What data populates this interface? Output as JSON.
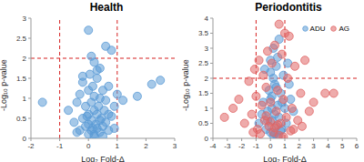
{
  "chart_data": [
    {
      "type": "scatter",
      "title": "Health",
      "x_label": "Log₂ Fold-Δ",
      "y_label": "-Log₁₀ p-value",
      "xlim": [
        -2,
        3
      ],
      "xticks": [
        -2,
        -1,
        0,
        1,
        2,
        3
      ],
      "ylim": [
        0,
        3
      ],
      "yticks": [
        0,
        0.5,
        1,
        1.5,
        2,
        2.5,
        3
      ],
      "thresholds": {
        "x": [
          -1,
          1
        ],
        "y": 2
      },
      "series": [
        {
          "color": "#5b9bd5",
          "marker": "circle",
          "x": [
            -1.6,
            -0.7,
            -0.5,
            -0.4,
            -0.3,
            -0.3,
            -0.2,
            -0.2,
            -0.1,
            -0.1,
            0,
            0,
            0,
            0.05,
            0.1,
            0.1,
            0.1,
            0.15,
            0.2,
            0.2,
            0.2,
            0.25,
            0.3,
            0.3,
            0.3,
            0.35,
            0.4,
            0.4,
            0.45,
            0.5,
            0.5,
            0.55,
            0.6,
            0.6,
            0.7,
            0.7,
            0.8,
            0.9,
            1.0,
            1.2,
            1.7,
            2.2,
            2.5,
            0.0,
            0.6,
            0.8,
            0.4,
            0.2,
            -0.2,
            0.1,
            0.3,
            0.5,
            0.9,
            -0.4,
            0.0,
            0.2,
            0.7,
            0.4,
            0.15,
            -0.05
          ],
          "values": [
            0.9,
            0.7,
            0.4,
            0.9,
            0.2,
            1.1,
            0.5,
            1.4,
            0.3,
            0.8,
            0.1,
            0.6,
            1.2,
            1.6,
            0.2,
            0.45,
            0.9,
            1.3,
            0.1,
            0.7,
            1.05,
            0.35,
            0.25,
            0.6,
            1.5,
            0.8,
            0.15,
            1.0,
            0.5,
            0.3,
            1.2,
            0.7,
            0.4,
            0.95,
            0.2,
            1.3,
            0.55,
            0.8,
            1.1,
            0.95,
            1.05,
            1.35,
            1.45,
            2.7,
            2.3,
            2.2,
            1.75,
            1.9,
            1.55,
            2.05,
            1.7,
            0.05,
            0.25,
            0.15,
            0.35,
            0.05,
            0.6,
            0.45,
            0.25,
            0.55
          ]
        }
      ]
    },
    {
      "type": "scatter",
      "title": "Periodontitis",
      "x_label": "Log₂ Fold-Δ",
      "y_label": "-Log₁₀ p-value",
      "xlim": [
        -4,
        6
      ],
      "xticks": [
        -4,
        -3,
        -2,
        -1,
        0,
        1,
        2,
        3,
        4,
        5,
        6
      ],
      "ylim": [
        0,
        4
      ],
      "yticks": [
        0,
        0.5,
        1,
        1.5,
        2,
        2.5,
        3,
        3.5,
        4
      ],
      "thresholds": {
        "x": [
          -1,
          1
        ],
        "y": 2
      },
      "legend": "upper right",
      "series": [
        {
          "name": "ADU",
          "color": "#5b9bd5",
          "marker": "circle",
          "x": [
            -0.8,
            -0.5,
            -0.3,
            -0.2,
            -0.1,
            0,
            0,
            0.1,
            0.1,
            0.2,
            0.2,
            0.3,
            0.3,
            0.4,
            0.4,
            0.5,
            0.5,
            0.6,
            0.7,
            0.8,
            0.9,
            1.0,
            1.2,
            1.4,
            -0.4,
            0.0,
            0.2,
            0.6,
            0.3,
            0.5,
            1.1,
            1.6,
            -0.2,
            0.1,
            0.8,
            0.4,
            0.7,
            0.0,
            1.3,
            -0.6
          ],
          "values": [
            0.5,
            1.2,
            0.3,
            0.9,
            1.6,
            0.2,
            2.2,
            0.6,
            1.4,
            0.1,
            2.0,
            0.8,
            1.8,
            0.4,
            2.4,
            1.1,
            2.7,
            0.7,
            1.5,
            0.3,
            2.1,
            1.0,
            2.5,
            1.3,
            2.3,
            2.6,
            3.0,
            3.3,
            0.15,
            0.05,
            0.5,
            0.9,
            0.6,
            1.0,
            1.2,
            1.7,
            0.25,
            1.3,
            1.8,
            0.8
          ]
        },
        {
          "name": "AG",
          "color": "#e06666",
          "marker": "circle",
          "x": [
            -3.2,
            -2.6,
            -2.2,
            -1.8,
            -1.5,
            -1.3,
            -1.1,
            -1.0,
            -0.9,
            -0.8,
            -0.6,
            -0.5,
            -0.4,
            -0.3,
            -0.2,
            -0.1,
            0,
            0.1,
            0.2,
            0.3,
            0.4,
            0.5,
            0.6,
            0.7,
            0.8,
            0.9,
            1.0,
            1.1,
            1.2,
            1.3,
            1.5,
            1.7,
            1.9,
            2.1,
            2.4,
            2.7,
            3.0,
            3.8,
            4.4,
            0.6,
            -0.7,
            0.3,
            0.0,
            1.4,
            -1.2,
            0.5,
            2.2,
            -0.3,
            0.9,
            1.6
          ],
          "values": [
            0.7,
            1.0,
            1.3,
            0.5,
            1.9,
            0.8,
            2.3,
            1.4,
            0.3,
            2.6,
            1.1,
            2.1,
            0.6,
            1.7,
            2.9,
            0.4,
            1.2,
            2.5,
            0.2,
            3.1,
            0.9,
            1.6,
            3.8,
            0.5,
            2.8,
            1.3,
            3.5,
            0.7,
            2.0,
            3.4,
            1.0,
            2.4,
            0.6,
            1.5,
            2.6,
            0.9,
            1.2,
            1.5,
            1.5,
            0.1,
            0.15,
            0.35,
            0.55,
            0.25,
            0.2,
            0.45,
            0.4,
            0.75,
            0.05,
            0.3
          ]
        }
      ]
    }
  ]
}
